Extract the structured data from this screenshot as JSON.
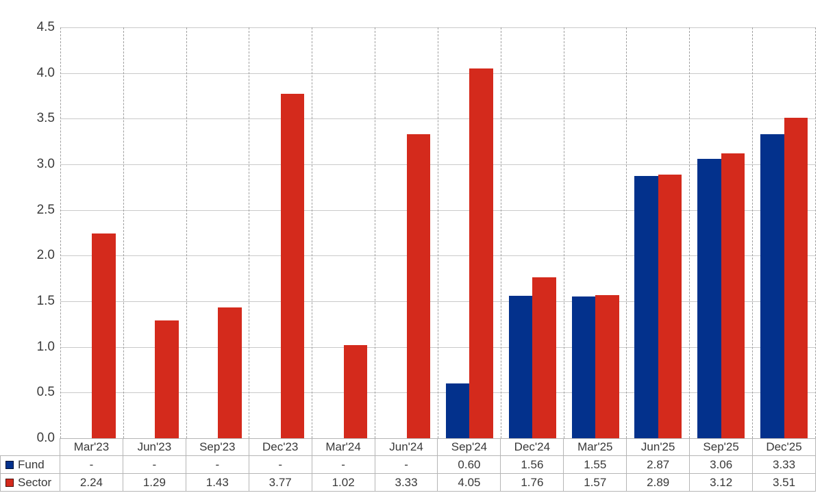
{
  "chart_data": {
    "type": "bar",
    "title": "",
    "xlabel": "",
    "ylabel": "",
    "categories": [
      "Mar'23",
      "Jun'23",
      "Sep'23",
      "Dec'23",
      "Mar'24",
      "Jun'24",
      "Sep'24",
      "Dec'24",
      "Mar'25",
      "Jun'25",
      "Sep'25",
      "Dec'25"
    ],
    "series": [
      {
        "name": "Fund",
        "color": "#03318c",
        "values": [
          null,
          null,
          null,
          null,
          null,
          null,
          0.6,
          1.56,
          1.55,
          2.87,
          3.06,
          3.33
        ]
      },
      {
        "name": "Sector",
        "color": "#d42a1c",
        "values": [
          2.24,
          1.29,
          1.43,
          3.77,
          1.02,
          3.33,
          4.05,
          1.76,
          1.57,
          2.89,
          3.12,
          3.51
        ]
      }
    ],
    "y_axis": {
      "min": 0,
      "max": 4.5,
      "tick_step": 0.5,
      "tick_labels": [
        "0.0",
        "0.5",
        "1.0",
        "1.5",
        "2.0",
        "2.5",
        "3.0",
        "3.5",
        "4.0",
        "4.5"
      ]
    },
    "null_display": "-",
    "value_decimals": 2,
    "grid": {
      "horizontal": "solid",
      "vertical": "dotted"
    },
    "legend_position": "table-left",
    "legend_as_table": true
  },
  "colors": {
    "background": "#ffffff",
    "fund": "#03318c",
    "sector": "#d42a1c",
    "grid_solid": "#c9c9c9",
    "grid_dotted": "#9e9e9e",
    "table_border": "#b5b5b5",
    "text": "#383838"
  }
}
